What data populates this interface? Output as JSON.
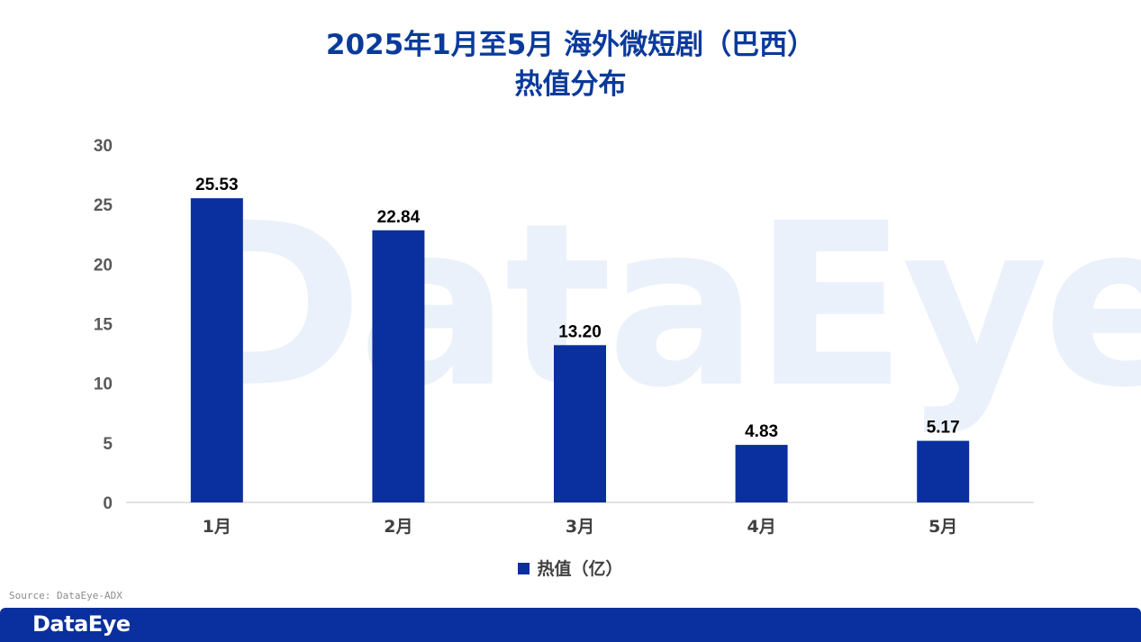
{
  "title": {
    "line1": "2025年1月至5月 海外微短剧（巴西）",
    "line2": "热值分布"
  },
  "watermark": "DataEye",
  "legend": {
    "label": "热值（亿）",
    "color": "#0a2f9e"
  },
  "source": "Source: DataEye-ADX",
  "footer": {
    "logo": "DataEye"
  },
  "chart_data": {
    "type": "bar",
    "categories": [
      "1月",
      "2月",
      "3月",
      "4月",
      "5月"
    ],
    "series": [
      {
        "name": "热值（亿）",
        "values": [
          25.53,
          22.84,
          13.2,
          4.83,
          5.17
        ],
        "labels": [
          "25.53",
          "22.84",
          "13.20",
          "4.83",
          "5.17"
        ]
      }
    ],
    "ylim": [
      0,
      30
    ],
    "yticks": [
      0,
      5,
      10,
      15,
      20,
      25,
      30
    ],
    "grid": false,
    "legend_position": "bottom",
    "bar_color": "#0a2f9e"
  }
}
